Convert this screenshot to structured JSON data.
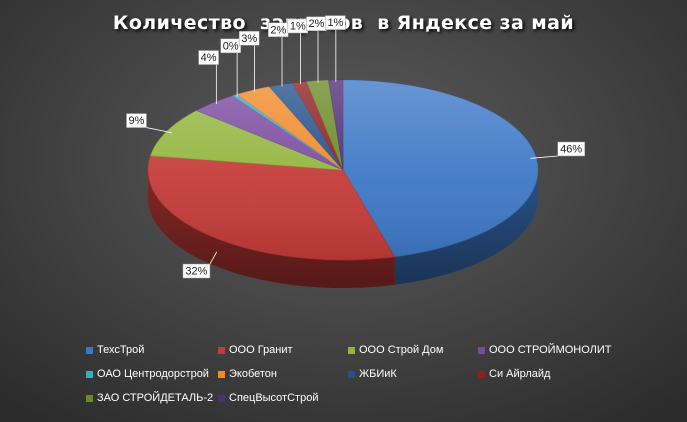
{
  "chart_data": {
    "type": "pie",
    "title": "Количество  запросов  в Яндексе за май",
    "legend_position": "bottom",
    "slices": [
      {
        "name": "ТехсТрой",
        "value": 46,
        "label": "46%",
        "color": "#3d78c6"
      },
      {
        "name": "ООО Гранит",
        "value": 32,
        "label": "32%",
        "color": "#c43b38"
      },
      {
        "name": "ООО Строй Дом",
        "value": 9,
        "label": "9%",
        "color": "#93b53f"
      },
      {
        "name": "ООО СТРОЙМОНОЛИТ",
        "value": 4,
        "label": "4%",
        "color": "#7a4aa0"
      },
      {
        "name": "ОАО Центродорстрой",
        "value": 0.4,
        "label": "0%",
        "color": "#3aa9c8"
      },
      {
        "name": "Экобетон",
        "value": 3,
        "label": "3%",
        "color": "#ef8a2a"
      },
      {
        "name": "ЖБИиК",
        "value": 2,
        "label": "2%",
        "color": "#264f8c"
      },
      {
        "name": "Си Айрлайд",
        "value": 1.2,
        "label": "1%",
        "color": "#8f1f22"
      },
      {
        "name": "ЗАО СТРОЙДЕТАЛЬ-2",
        "value": 1.8,
        "label": "2%",
        "color": "#6a8a25"
      },
      {
        "name": "СпецВысотСтрой",
        "value": 1.2,
        "label": "1%",
        "color": "#4f2e78"
      }
    ]
  }
}
